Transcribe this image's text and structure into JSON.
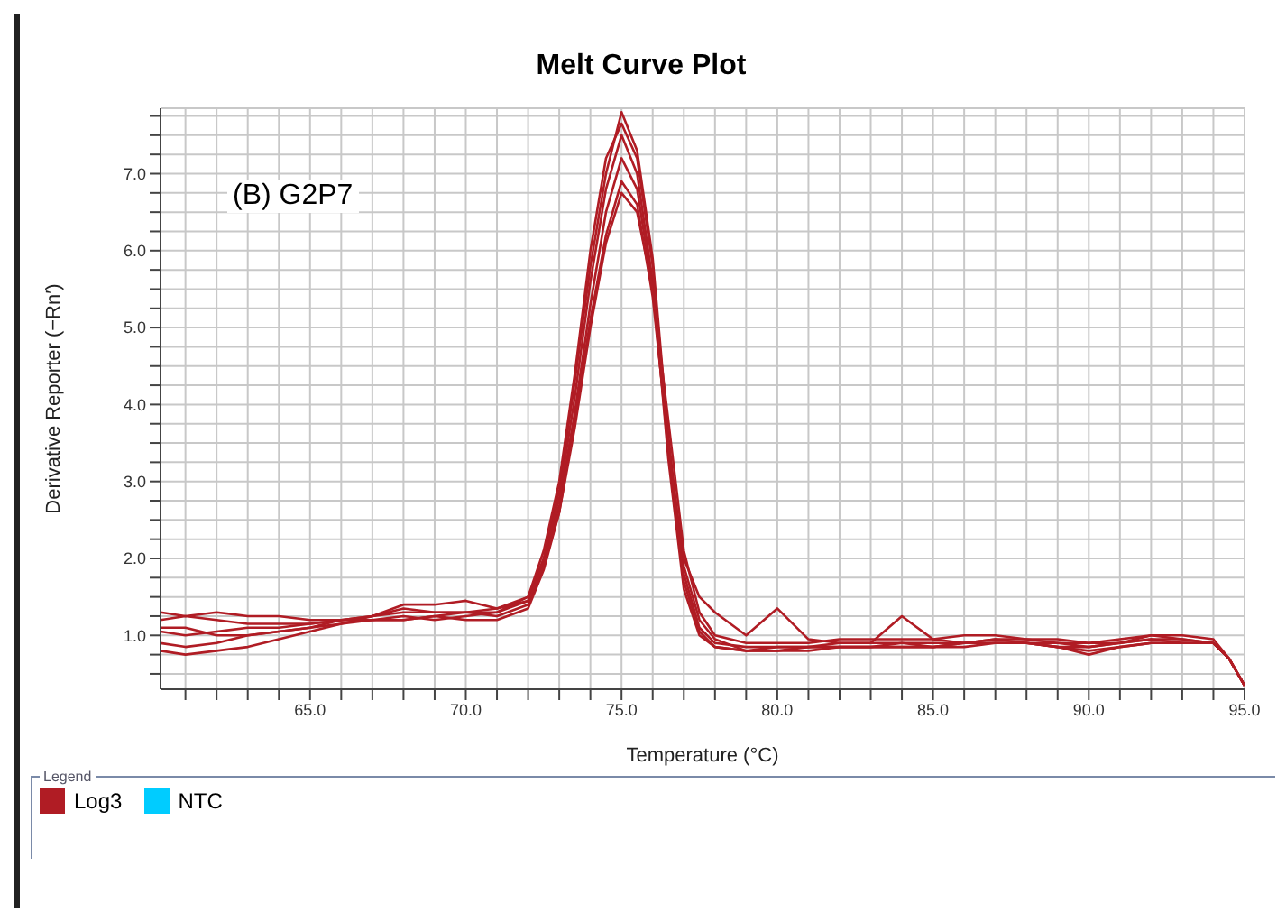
{
  "chart_data": {
    "type": "line",
    "title": "Melt Curve Plot",
    "xlabel": "Temperature (°C)",
    "ylabel": "Derivative Reporter (−Rn′)",
    "annotations": [
      "(B) G2P7"
    ],
    "legend": "bottom",
    "legend_title": "Legend",
    "grid": true,
    "marker": "none",
    "line_style": "solid",
    "x": [
      60.2,
      61,
      62,
      63,
      64,
      65,
      66,
      67,
      68,
      69,
      70,
      71,
      72,
      72.5,
      73,
      73.5,
      74,
      74.5,
      75,
      75.5,
      76,
      76.5,
      77,
      77.5,
      78,
      79,
      80,
      81,
      82,
      83,
      84,
      85,
      86,
      87,
      88,
      89,
      90,
      91,
      92,
      93,
      94,
      94.5,
      95
    ],
    "xlim": [
      60.2,
      95
    ],
    "ylim": [
      0.3,
      7.85
    ],
    "xticks": [
      {
        "value": 61,
        "label": null
      },
      {
        "value": 62,
        "label": null
      },
      {
        "value": 63,
        "label": null
      },
      {
        "value": 64,
        "label": null
      },
      {
        "value": 65,
        "label": "65.0"
      },
      {
        "value": 66,
        "label": null
      },
      {
        "value": 67,
        "label": null
      },
      {
        "value": 68,
        "label": null
      },
      {
        "value": 69,
        "label": null
      },
      {
        "value": 70,
        "label": "70.0"
      },
      {
        "value": 71,
        "label": null
      },
      {
        "value": 72,
        "label": null
      },
      {
        "value": 73,
        "label": null
      },
      {
        "value": 74,
        "label": null
      },
      {
        "value": 75,
        "label": "75.0"
      },
      {
        "value": 76,
        "label": null
      },
      {
        "value": 77,
        "label": null
      },
      {
        "value": 78,
        "label": null
      },
      {
        "value": 79,
        "label": null
      },
      {
        "value": 80,
        "label": "80.0"
      },
      {
        "value": 81,
        "label": null
      },
      {
        "value": 82,
        "label": null
      },
      {
        "value": 83,
        "label": null
      },
      {
        "value": 84,
        "label": null
      },
      {
        "value": 85,
        "label": "85.0"
      },
      {
        "value": 86,
        "label": null
      },
      {
        "value": 87,
        "label": null
      },
      {
        "value": 88,
        "label": null
      },
      {
        "value": 89,
        "label": null
      },
      {
        "value": 90,
        "label": "90.0"
      },
      {
        "value": 91,
        "label": null
      },
      {
        "value": 92,
        "label": null
      },
      {
        "value": 93,
        "label": null
      },
      {
        "value": 94,
        "label": null
      },
      {
        "value": 95,
        "label": "95.0"
      }
    ],
    "yticks": [
      {
        "value": 0.5,
        "label": null
      },
      {
        "value": 0.75,
        "label": null
      },
      {
        "value": 1,
        "label": "1.0"
      },
      {
        "value": 1.25,
        "label": null
      },
      {
        "value": 1.5,
        "label": null
      },
      {
        "value": 1.75,
        "label": null
      },
      {
        "value": 2,
        "label": "2.0"
      },
      {
        "value": 2.25,
        "label": null
      },
      {
        "value": 2.5,
        "label": null
      },
      {
        "value": 2.75,
        "label": null
      },
      {
        "value": 3,
        "label": "3.0"
      },
      {
        "value": 3.25,
        "label": null
      },
      {
        "value": 3.5,
        "label": null
      },
      {
        "value": 3.75,
        "label": null
      },
      {
        "value": 4,
        "label": "4.0"
      },
      {
        "value": 4.25,
        "label": null
      },
      {
        "value": 4.5,
        "label": null
      },
      {
        "value": 4.75,
        "label": null
      },
      {
        "value": 5,
        "label": "5.0"
      },
      {
        "value": 5.25,
        "label": null
      },
      {
        "value": 5.5,
        "label": null
      },
      {
        "value": 5.75,
        "label": null
      },
      {
        "value": 6,
        "label": "6.0"
      },
      {
        "value": 6.25,
        "label": null
      },
      {
        "value": 6.5,
        "label": null
      },
      {
        "value": 6.75,
        "label": null
      },
      {
        "value": 7,
        "label": "7.0"
      },
      {
        "value": 7.25,
        "label": null
      },
      {
        "value": 7.5,
        "label": null
      },
      {
        "value": 7.75,
        "label": null
      }
    ],
    "series": [
      {
        "name": "Log3",
        "color": "#b01c24",
        "values": [
          1.2,
          1.25,
          1.2,
          1.15,
          1.15,
          1.15,
          1.2,
          1.25,
          1.3,
          1.3,
          1.3,
          1.35,
          1.5,
          2.0,
          2.9,
          4.3,
          5.8,
          7.0,
          7.8,
          7.3,
          5.9,
          3.6,
          1.8,
          1.1,
          0.9,
          0.85,
          0.85,
          0.85,
          0.9,
          0.9,
          0.9,
          0.9,
          0.9,
          0.95,
          0.95,
          0.9,
          0.9,
          0.9,
          0.95,
          0.95,
          0.9,
          0.7,
          0.35
        ]
      },
      {
        "color": "#b01c24",
        "values": [
          1.05,
          1.0,
          1.05,
          1.1,
          1.1,
          1.15,
          1.2,
          1.2,
          1.25,
          1.2,
          1.25,
          1.3,
          1.45,
          1.95,
          2.8,
          4.1,
          5.6,
          6.8,
          7.5,
          7.0,
          5.6,
          3.3,
          1.6,
          1.0,
          0.85,
          0.8,
          0.85,
          0.85,
          0.85,
          0.85,
          0.9,
          0.85,
          0.9,
          0.9,
          0.9,
          0.85,
          0.8,
          0.85,
          0.9,
          0.9,
          0.9,
          0.7,
          0.35
        ]
      },
      {
        "color": "#b01c24",
        "values": [
          0.9,
          0.85,
          0.9,
          1.0,
          1.05,
          1.1,
          1.15,
          1.25,
          1.35,
          1.3,
          1.3,
          1.25,
          1.4,
          1.9,
          2.7,
          3.9,
          5.3,
          6.5,
          7.2,
          6.8,
          5.5,
          3.4,
          2.0,
          1.5,
          1.3,
          1.0,
          1.35,
          0.95,
          0.9,
          0.9,
          1.25,
          0.95,
          0.9,
          0.95,
          0.9,
          0.9,
          0.85,
          0.9,
          1.0,
          0.95,
          0.9,
          0.7,
          0.35
        ]
      },
      {
        "color": "#b01c24",
        "values": [
          0.8,
          0.75,
          0.8,
          0.85,
          0.95,
          1.05,
          1.15,
          1.2,
          1.2,
          1.25,
          1.2,
          1.2,
          1.35,
          1.85,
          2.6,
          3.8,
          5.1,
          6.2,
          6.9,
          6.6,
          5.4,
          3.5,
          1.9,
          1.2,
          0.95,
          0.8,
          0.8,
          0.8,
          0.85,
          0.85,
          0.85,
          0.85,
          0.9,
          0.9,
          0.9,
          0.85,
          0.75,
          0.85,
          0.9,
          0.9,
          0.9,
          0.7,
          0.35
        ]
      },
      {
        "color": "#b01c24",
        "values": [
          1.3,
          1.25,
          1.3,
          1.25,
          1.25,
          1.2,
          1.2,
          1.25,
          1.4,
          1.4,
          1.45,
          1.35,
          1.45,
          1.9,
          2.6,
          3.7,
          5.0,
          6.1,
          6.75,
          6.5,
          5.5,
          3.8,
          2.1,
          1.3,
          1.0,
          0.9,
          0.9,
          0.9,
          0.95,
          0.95,
          0.95,
          0.95,
          1.0,
          1.0,
          0.95,
          0.95,
          0.9,
          0.95,
          1.0,
          1.0,
          0.95,
          0.7,
          0.35
        ]
      },
      {
        "color": "#b01c24",
        "values": [
          1.1,
          1.1,
          1.0,
          1.0,
          1.05,
          1.1,
          1.2,
          1.2,
          1.2,
          1.25,
          1.3,
          1.3,
          1.5,
          2.1,
          3.0,
          4.4,
          6.0,
          7.2,
          7.65,
          7.2,
          5.8,
          3.5,
          1.7,
          1.05,
          0.85,
          0.8,
          0.8,
          0.85,
          0.85,
          0.85,
          0.85,
          0.85,
          0.85,
          0.9,
          0.9,
          0.85,
          0.85,
          0.9,
          0.95,
          0.9,
          0.9,
          0.7,
          0.35
        ]
      },
      {
        "name": "NTC",
        "color": "#00ccff",
        "values": [
          null,
          null,
          null,
          null,
          null,
          null,
          null,
          null,
          null,
          null,
          null,
          null,
          null,
          null,
          null,
          null,
          null,
          null,
          null,
          null,
          null,
          null,
          null,
          null,
          null,
          null,
          null,
          null,
          null,
          null,
          null,
          null,
          null,
          null,
          null,
          null,
          null,
          null,
          null,
          null,
          null,
          null,
          null
        ]
      }
    ]
  }
}
